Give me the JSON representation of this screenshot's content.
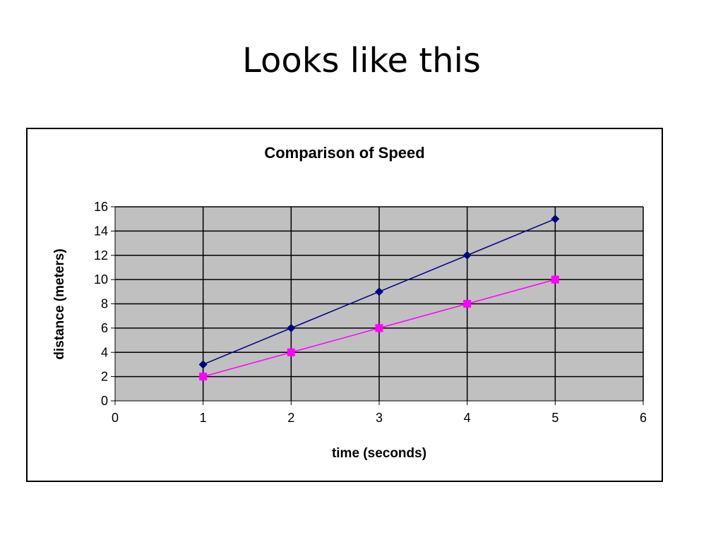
{
  "slide": {
    "title": "Looks like this"
  },
  "colors": {
    "plot_background": "#c0c0c0",
    "grid": "#000000",
    "series_distance_1": "#000080",
    "series_distance_2": "#ff00ff"
  },
  "chart_data": {
    "type": "line",
    "title": "Comparison of Speed",
    "xlabel": "time (seconds)",
    "ylabel": "distance (meters)",
    "xlim": [
      0,
      6
    ],
    "ylim": [
      0,
      16
    ],
    "x_ticks": [
      "0",
      "1",
      "2",
      "3",
      "4",
      "5",
      "6"
    ],
    "y_ticks": [
      "0",
      "2",
      "4",
      "6",
      "8",
      "10",
      "12",
      "14",
      "16"
    ],
    "grid": true,
    "legend": "none",
    "series": [
      {
        "marker": "diamond",
        "color": "#000080",
        "x": [
          1,
          2,
          3,
          4,
          5
        ],
        "y": [
          3,
          6,
          9,
          12,
          15
        ]
      },
      {
        "marker": "square",
        "color": "#ff00ff",
        "x": [
          1,
          2,
          3,
          4,
          5
        ],
        "y": [
          2,
          4,
          6,
          8,
          10
        ]
      }
    ]
  }
}
